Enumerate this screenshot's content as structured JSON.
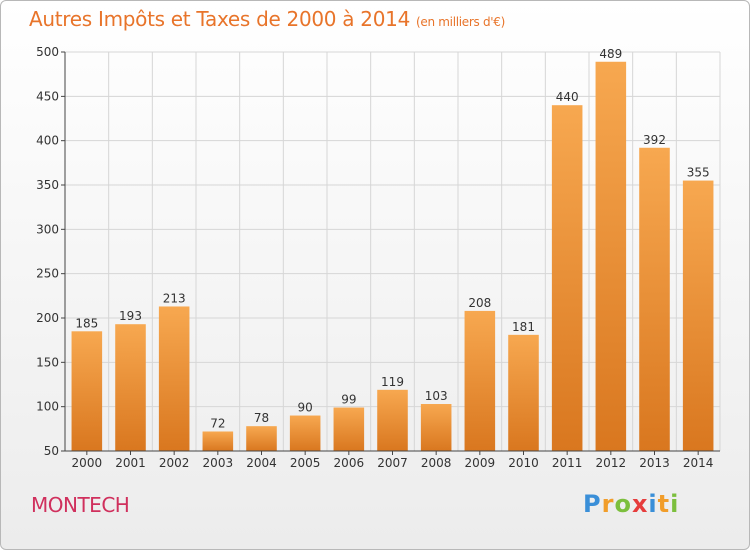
{
  "title": "Autres Impôts et Taxes de 2000 à 2014",
  "subtitle": "(en milliers d'€)",
  "commune": "MONTECH",
  "logo": {
    "text": "Proxiti",
    "colors": [
      "#3a8fd8",
      "#f19d2a",
      "#7cbf3d",
      "#e63c3c",
      "#3a8fd8",
      "#f19d2a",
      "#7cbf3d"
    ]
  },
  "colors": {
    "bar_light": "#f7a850",
    "bar_dark": "#d9771f",
    "title": "#e8742a",
    "commune": "#d0305d",
    "grid": "#d6d6d6"
  },
  "chart_data": {
    "type": "bar",
    "categories": [
      "2000",
      "2001",
      "2002",
      "2003",
      "2004",
      "2005",
      "2006",
      "2007",
      "2008",
      "2009",
      "2010",
      "2011",
      "2012",
      "2013",
      "2014"
    ],
    "values": [
      185,
      193,
      213,
      72,
      78,
      90,
      99,
      119,
      103,
      208,
      181,
      440,
      489,
      392,
      355
    ],
    "ylim": [
      50,
      500
    ],
    "yticks": [
      50,
      100,
      150,
      200,
      250,
      300,
      350,
      400,
      450,
      500
    ],
    "grid": true
  }
}
